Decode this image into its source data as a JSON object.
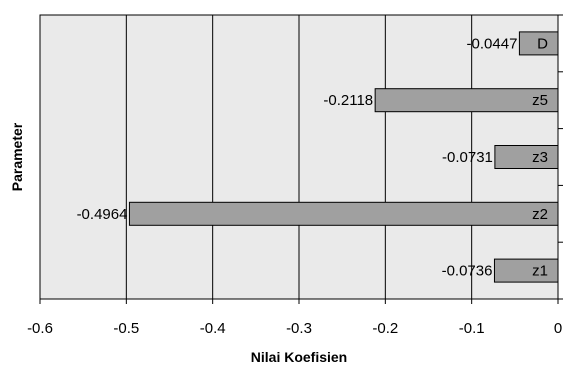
{
  "chart_data": {
    "type": "bar",
    "orientation": "horizontal",
    "categories": [
      "z1",
      "z2",
      "z3",
      "z5",
      "D"
    ],
    "values": [
      -0.0736,
      -0.4964,
      -0.0731,
      -0.2118,
      -0.0447
    ],
    "data_labels": [
      "-0.0736",
      "-0.4964",
      "-0.0731",
      "-0.2118",
      "-0.0447"
    ],
    "xlabel": "Nilai Koefisien",
    "ylabel": "Parameter",
    "xlim": [
      -0.6,
      0
    ],
    "xticks": [
      -0.6,
      -0.5,
      -0.4,
      -0.3,
      -0.2,
      -0.1,
      0
    ],
    "xtick_labels": [
      "-0.6",
      "-0.5",
      "-0.4",
      "-0.3",
      "-0.2",
      "-0.1",
      "0"
    ],
    "grid": "vertical",
    "legend": "none",
    "colors": {
      "bar_fill": "#a0a0a0",
      "bar_stroke": "#000000",
      "plot_background": "#eaeaea",
      "gridline": "#000000"
    }
  }
}
